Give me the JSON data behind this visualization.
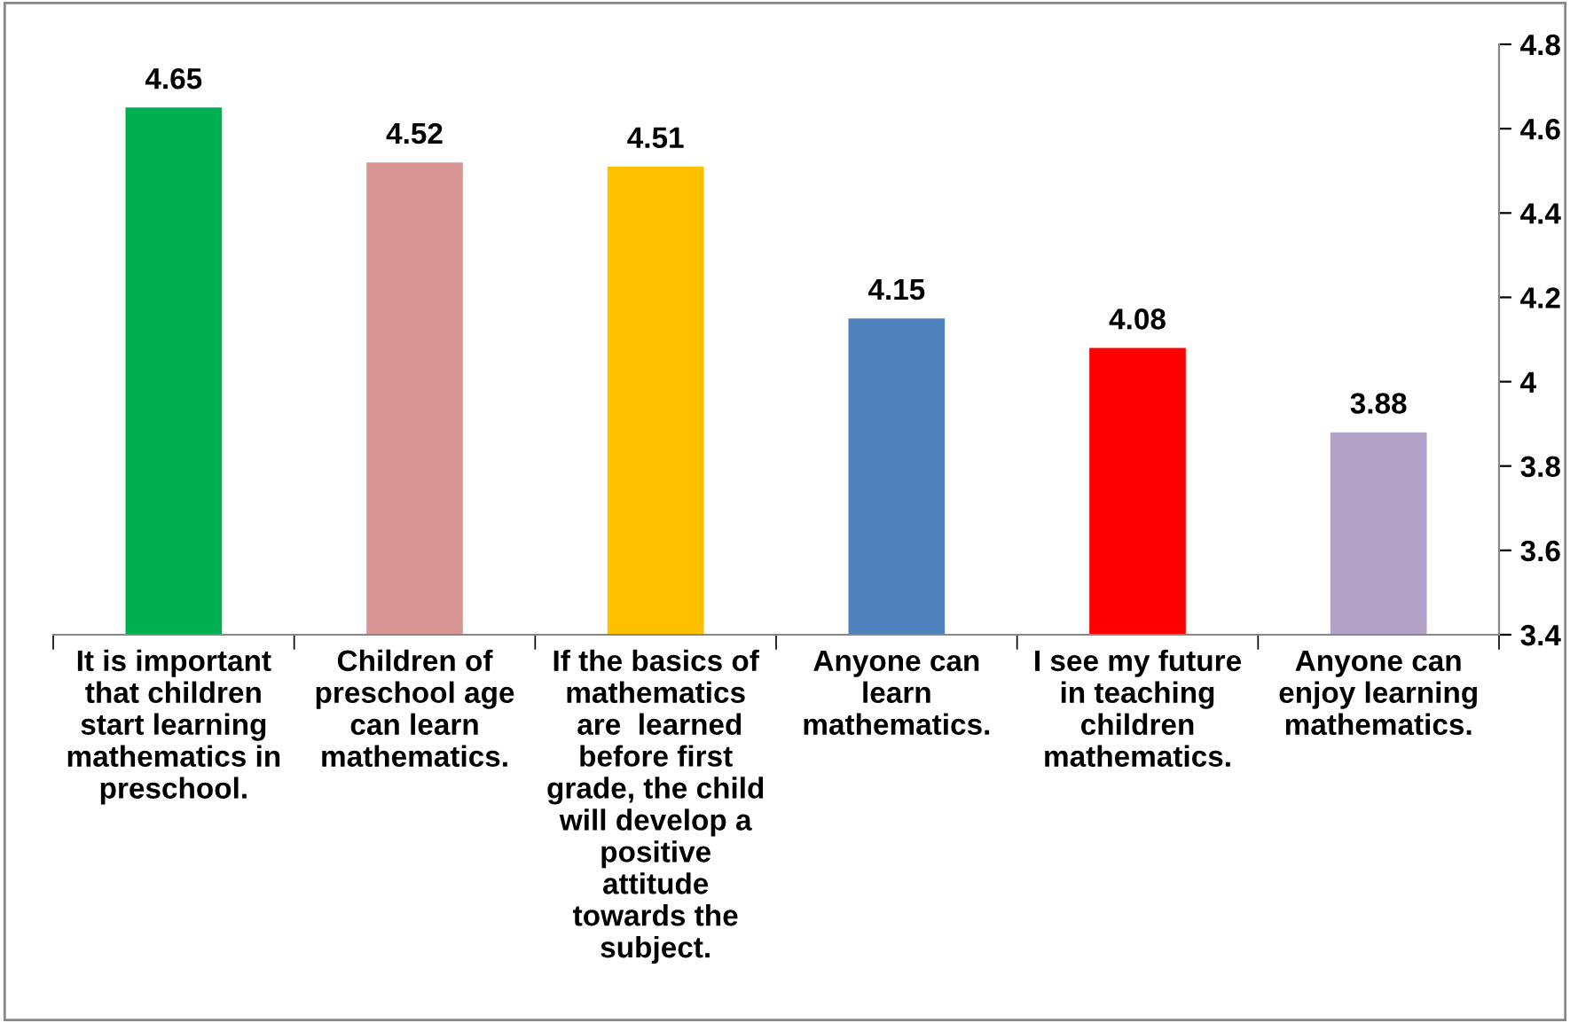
{
  "chart_data": {
    "type": "bar",
    "categories": [
      "It is important\nthat children\nstart learning\nmathematics in\npreschool.",
      "Children of\npreschool age\ncan learn\nmathematics.",
      "If the basics of\nmathematics\n are  learned\nbefore first\ngrade, the child\nwill develop a\npositive\nattitude\ntowards the\nsubject.",
      "Anyone can\nlearn\nmathematics.",
      "I see my future\nin teaching\nchildren\nmathematics.",
      "Anyone can\nenjoy learning\nmathematics."
    ],
    "values": [
      4.65,
      4.52,
      4.51,
      4.15,
      4.08,
      3.88
    ],
    "colors": [
      "#00b050",
      "#d99694",
      "#ffc000",
      "#4f81bd",
      "#ff0000",
      "#b3a2c7"
    ],
    "ylim": [
      3.4,
      4.8
    ],
    "yticks": [
      3.4,
      3.6,
      3.8,
      4,
      4.2,
      4.4,
      4.6,
      4.8
    ],
    "data_labels": true,
    "grid": false,
    "legend": false
  }
}
